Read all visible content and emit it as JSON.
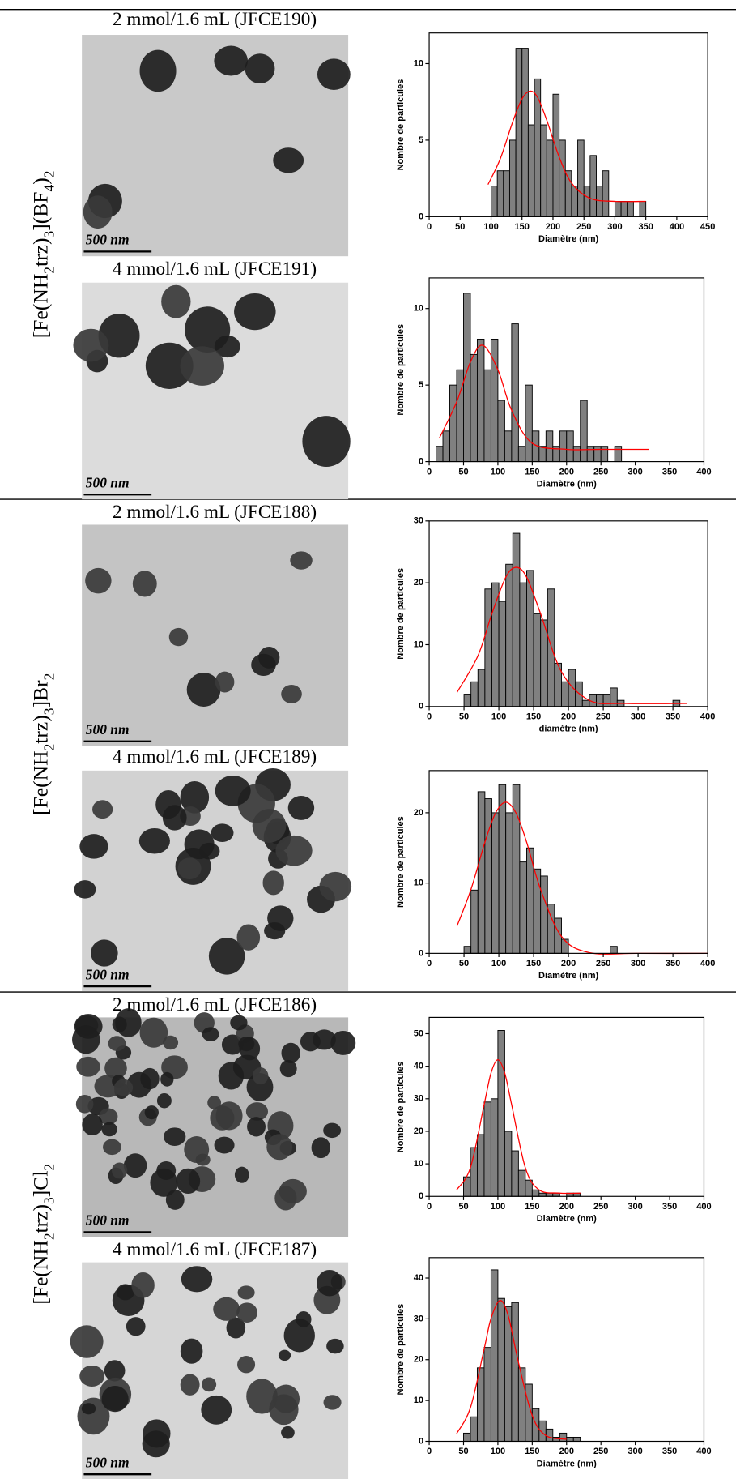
{
  "groups": [
    {
      "label": "[Fe(NH2trz)3](BF4)2"
    },
    {
      "label": "[Fe(NH2trz)3]Br2"
    },
    {
      "label": "[Fe(NH2trz)3]Cl2"
    }
  ],
  "samples": [
    {
      "title": "2 mmol/1.6 mL (JFCE190)",
      "scale_bar": "500 nm"
    },
    {
      "title": "4 mmol/1.6 mL (JFCE191)",
      "scale_bar": "500 nm"
    },
    {
      "title": "2 mmol/1.6 mL (JFCE188)",
      "scale_bar": "500 nm"
    },
    {
      "title": "4 mmol/1.6 mL (JFCE189)",
      "scale_bar": "500 nm"
    },
    {
      "title": "2 mmol/1.6 mL (JFCE186)",
      "scale_bar": "500 nm"
    },
    {
      "title": "4 mmol/1.6 mL (JFCE187)",
      "scale_bar": "500 nm"
    }
  ],
  "chart_data": [
    {
      "type": "histogram",
      "x_label": "Diamètre (nm)",
      "y_label": "Nombre de particules",
      "color": "#808080",
      "bins": [
        100,
        110,
        120,
        130,
        140,
        150,
        160,
        170,
        180,
        190,
        200,
        210,
        220,
        230,
        240,
        250,
        260,
        270,
        280,
        290,
        300,
        310,
        320,
        330,
        340,
        350
      ],
      "values": [
        2,
        3,
        3,
        5,
        11,
        11,
        6,
        9,
        6,
        5,
        8,
        5,
        3,
        2,
        5,
        2,
        4,
        2,
        3,
        0,
        1,
        1,
        1,
        0,
        1
      ],
      "xlim": [
        0,
        450
      ],
      "xticks": [
        0,
        50,
        100,
        150,
        200,
        250,
        300,
        350,
        400,
        450
      ],
      "ylim": [
        0,
        12
      ],
      "yticks": [
        0,
        5,
        10
      ],
      "fit": {
        "color": "#ff0000",
        "x": [
          95,
          115,
          135,
          150,
          163,
          175,
          190,
          210,
          230,
          260,
          300,
          350
        ],
        "values": [
          2.1,
          3.8,
          6.2,
          7.7,
          8.2,
          7.8,
          6.3,
          3.9,
          2.2,
          1.2,
          1.0,
          1.0
        ]
      }
    },
    {
      "type": "histogram",
      "x_label": "Diamètre (nm)",
      "y_label": "Nombre de particules",
      "color": "#808080",
      "bins": [
        10,
        20,
        30,
        40,
        50,
        60,
        70,
        80,
        90,
        100,
        110,
        120,
        130,
        140,
        150,
        160,
        170,
        180,
        190,
        200,
        210,
        220,
        230,
        240,
        250,
        260,
        270,
        280
      ],
      "values": [
        1,
        2,
        5,
        6,
        11,
        7,
        8,
        6,
        8,
        4,
        2,
        9,
        1,
        5,
        2,
        1,
        2,
        1,
        2,
        2,
        1,
        4,
        1,
        1,
        1,
        0,
        1
      ],
      "xlim": [
        0,
        400
      ],
      "xticks": [
        0,
        50,
        100,
        150,
        200,
        250,
        300,
        350,
        400
      ],
      "ylim": [
        0,
        12
      ],
      "yticks": [
        0,
        5,
        10
      ],
      "fit": {
        "color": "#ff0000",
        "x": [
          15,
          40,
          60,
          78,
          100,
          120,
          150,
          200,
          250,
          320
        ],
        "values": [
          1.55,
          3.9,
          6.5,
          7.6,
          6.0,
          3.35,
          1.2,
          0.8,
          0.8,
          0.8
        ]
      }
    },
    {
      "type": "histogram",
      "x_label": "diamètre (nm)",
      "y_label": "Nombre de particules",
      "color": "#808080",
      "bins": [
        50,
        60,
        70,
        80,
        90,
        100,
        110,
        120,
        130,
        140,
        150,
        160,
        170,
        180,
        190,
        200,
        210,
        220,
        230,
        240,
        250,
        260,
        270,
        280,
        290,
        300,
        310,
        320,
        330,
        340,
        350,
        360
      ],
      "values": [
        2,
        4,
        6,
        19,
        20,
        17,
        23,
        28,
        20,
        22,
        15,
        14,
        19,
        7,
        4,
        6,
        4,
        1,
        2,
        2,
        2,
        3,
        1,
        0,
        0,
        0,
        0,
        0,
        0,
        0,
        1
      ],
      "xlim": [
        0,
        400
      ],
      "xticks": [
        0,
        50,
        100,
        150,
        200,
        250,
        300,
        350,
        400
      ],
      "ylim": [
        0,
        30
      ],
      "yticks": [
        0,
        10,
        20,
        30
      ],
      "fit": {
        "color": "#ff0000",
        "x": [
          40,
          70,
          90,
          110,
          125,
          140,
          160,
          190,
          230,
          280,
          370
        ],
        "values": [
          2.3,
          8.2,
          15,
          20.9,
          22.5,
          20.9,
          15,
          5.6,
          1.0,
          0.5,
          0.5
        ]
      }
    },
    {
      "type": "histogram",
      "x_label": "Diamètre (nm)",
      "y_label": "Nombre de particules",
      "color": "#808080",
      "bins": [
        50,
        60,
        70,
        80,
        90,
        100,
        110,
        120,
        130,
        140,
        150,
        160,
        170,
        180,
        190,
        200,
        210,
        220,
        230,
        240,
        250,
        260,
        270
      ],
      "values": [
        1,
        9,
        23,
        22,
        20,
        24,
        20,
        24,
        13,
        15,
        12,
        11,
        7,
        5,
        2,
        0,
        0,
        0,
        0,
        0,
        0,
        1
      ],
      "xlim": [
        0,
        400
      ],
      "xticks": [
        0,
        50,
        100,
        150,
        200,
        250,
        300,
        350,
        400
      ],
      "ylim": [
        0,
        26
      ],
      "yticks": [
        0,
        10,
        20
      ],
      "fit": {
        "color": "#ff0000",
        "x": [
          40,
          60,
          80,
          95,
          110,
          125,
          140,
          160,
          190,
          230,
          300,
          400
        ],
        "values": [
          3.9,
          9.1,
          15.8,
          19.9,
          21.5,
          19.9,
          15.8,
          9.1,
          2.4,
          0.1,
          0,
          0
        ]
      }
    },
    {
      "type": "histogram",
      "x_label": "Diamètre (nm)",
      "y_label": "Nombre de particules",
      "color": "#808080",
      "bins": [
        50,
        60,
        70,
        80,
        90,
        100,
        110,
        120,
        130,
        140,
        150,
        160,
        170,
        180,
        190,
        200,
        210,
        220
      ],
      "values": [
        6,
        15,
        19,
        29,
        30,
        51,
        20,
        14,
        8,
        5,
        2,
        1,
        1,
        1,
        0,
        1,
        1
      ],
      "xlim": [
        0,
        400
      ],
      "xticks": [
        0,
        50,
        100,
        150,
        200,
        250,
        300,
        350,
        400
      ],
      "ylim": [
        0,
        55
      ],
      "yticks": [
        0,
        10,
        20,
        30,
        40,
        50
      ],
      "fit": {
        "color": "#ff0000",
        "x": [
          40,
          60,
          80,
          90,
          100,
          110,
          120,
          140,
          160,
          190,
          220
        ],
        "values": [
          2.0,
          8.8,
          28.2,
          37.9,
          42,
          37.9,
          28.2,
          8.8,
          2.0,
          1,
          1
        ]
      }
    },
    {
      "type": "histogram",
      "x_label": "Diamètre (nm)",
      "y_label": "Nombre de particules",
      "color": "#808080",
      "bins": [
        50,
        60,
        70,
        80,
        90,
        100,
        110,
        120,
        130,
        140,
        150,
        160,
        170,
        180,
        190,
        200,
        210,
        220
      ],
      "values": [
        2,
        6,
        18,
        23,
        42,
        35,
        33,
        34,
        18,
        14,
        8,
        5,
        3,
        1,
        2,
        1,
        1
      ],
      "xlim": [
        0,
        400
      ],
      "xticks": [
        0,
        50,
        100,
        150,
        200,
        250,
        300,
        350,
        400
      ],
      "ylim": [
        0,
        45
      ],
      "yticks": [
        0,
        10,
        20,
        30,
        40
      ],
      "fit": {
        "color": "#ff0000",
        "x": [
          40,
          60,
          80,
          90,
          103,
          115,
          130,
          150,
          170,
          200
        ],
        "values": [
          1.9,
          8.2,
          22.6,
          30.1,
          34.5,
          30.8,
          19.3,
          6.3,
          1.4,
          0.5
        ]
      }
    }
  ]
}
